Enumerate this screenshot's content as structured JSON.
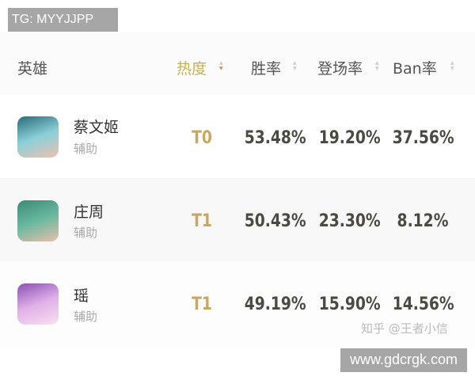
{
  "watermark_top": "TG: MYYJJPP",
  "watermark_bottom": "www.gdcrgk.com",
  "source_watermark": "知乎 @王者小信",
  "columns": {
    "hero": "英雄",
    "heat": "热度",
    "win": "胜率",
    "pick": "登场率",
    "ban": "Ban率"
  },
  "active_sort": "heat",
  "colors": {
    "tier": "#c8a860",
    "sort_active": "#d98a50"
  },
  "rows": [
    {
      "name": "蔡文姬",
      "role": "辅助",
      "tier": "T0",
      "win": "53.48%",
      "pick": "19.20%",
      "ban": "37.56%"
    },
    {
      "name": "庄周",
      "role": "辅助",
      "tier": "T1",
      "win": "50.43%",
      "pick": "23.30%",
      "ban": "8.12%"
    },
    {
      "name": "瑶",
      "role": "辅助",
      "tier": "T1",
      "win": "49.19%",
      "pick": "15.90%",
      "ban": "14.56%"
    }
  ]
}
